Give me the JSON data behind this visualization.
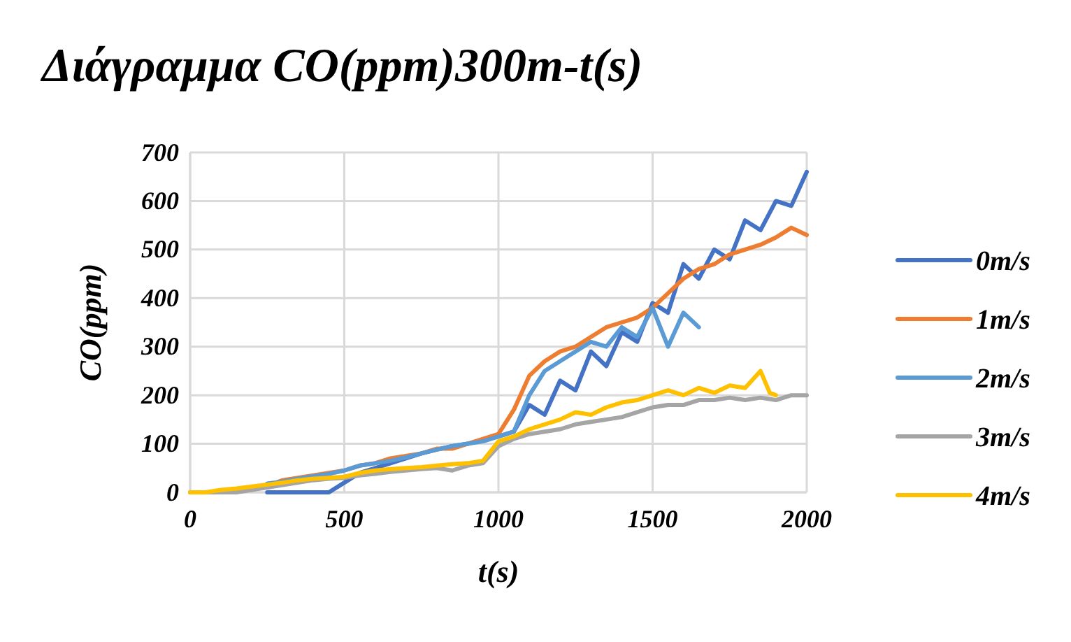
{
  "chart_data": {
    "type": "line",
    "title": "Διάγραμμα CO(ppm)300m-t(s)",
    "xlabel": "t(s)",
    "ylabel": "CO(ppm)",
    "xlim": [
      0,
      2000
    ],
    "xticks": [
      0,
      500,
      1000,
      1500,
      2000
    ],
    "ylim": [
      0,
      700
    ],
    "yticks": [
      0,
      100,
      200,
      300,
      400,
      500,
      600,
      700
    ],
    "grid": true,
    "legend": "right",
    "line_style": "solid",
    "marker": "none",
    "series": [
      {
        "name": "0m/s",
        "color": "#4472c4",
        "x": [
          250,
          300,
          350,
          400,
          450,
          500,
          550,
          600,
          650,
          700,
          750,
          800,
          850,
          900,
          950,
          1000,
          1050,
          1100,
          1150,
          1200,
          1250,
          1300,
          1350,
          1400,
          1450,
          1500,
          1550,
          1600,
          1650,
          1700,
          1750,
          1800,
          1850,
          1900,
          1950,
          2000
        ],
        "values": [
          0,
          0,
          0,
          0,
          0,
          20,
          40,
          50,
          60,
          70,
          80,
          88,
          95,
          100,
          108,
          115,
          125,
          180,
          160,
          230,
          210,
          290,
          260,
          330,
          310,
          390,
          370,
          470,
          440,
          500,
          480,
          560,
          540,
          600,
          590,
          660
        ]
      },
      {
        "name": "1m/s",
        "color": "#ed7d31",
        "x": [
          200,
          250,
          300,
          350,
          400,
          450,
          500,
          550,
          600,
          650,
          700,
          750,
          800,
          850,
          900,
          950,
          1000,
          1050,
          1100,
          1150,
          1200,
          1250,
          1300,
          1350,
          1400,
          1450,
          1500,
          1550,
          1600,
          1650,
          1700,
          1750,
          1800,
          1850,
          1900,
          1950,
          2000
        ],
        "values": [
          5,
          13,
          25,
          30,
          35,
          40,
          45,
          55,
          60,
          70,
          75,
          80,
          90,
          90,
          100,
          110,
          120,
          170,
          240,
          270,
          290,
          300,
          320,
          340,
          350,
          360,
          380,
          410,
          440,
          460,
          470,
          490,
          500,
          510,
          525,
          545,
          530
        ]
      },
      {
        "name": "2m/s",
        "color": "#5b9bd5",
        "x": [
          250,
          300,
          350,
          400,
          450,
          500,
          550,
          600,
          650,
          700,
          750,
          800,
          850,
          900,
          950,
          1000,
          1050,
          1100,
          1150,
          1200,
          1250,
          1300,
          1350,
          1400,
          1450,
          1500,
          1550,
          1600,
          1650
        ],
        "values": [
          18,
          22,
          28,
          33,
          38,
          45,
          55,
          60,
          65,
          72,
          80,
          88,
          95,
          100,
          105,
          115,
          125,
          200,
          250,
          270,
          290,
          310,
          300,
          340,
          320,
          380,
          300,
          370,
          340
        ]
      },
      {
        "name": "3m/s",
        "color": "#a5a5a5",
        "x": [
          0,
          50,
          100,
          150,
          200,
          250,
          300,
          350,
          400,
          450,
          500,
          550,
          600,
          650,
          700,
          750,
          800,
          850,
          900,
          950,
          1000,
          1050,
          1100,
          1150,
          1200,
          1250,
          1300,
          1350,
          1400,
          1450,
          1500,
          1550,
          1600,
          1650,
          1700,
          1750,
          1800,
          1850,
          1900,
          1950,
          2000
        ],
        "values": [
          0,
          0,
          0,
          0,
          5,
          10,
          15,
          20,
          25,
          28,
          30,
          35,
          38,
          42,
          45,
          48,
          50,
          45,
          55,
          60,
          95,
          110,
          120,
          125,
          130,
          140,
          145,
          150,
          155,
          165,
          175,
          180,
          180,
          190,
          190,
          195,
          190,
          195,
          190,
          200,
          200
        ]
      },
      {
        "name": "4m/s",
        "color": "#ffc000",
        "x": [
          0,
          50,
          100,
          150,
          200,
          250,
          300,
          350,
          400,
          450,
          500,
          550,
          600,
          650,
          700,
          750,
          800,
          850,
          900,
          950,
          1000,
          1050,
          1100,
          1150,
          1200,
          1250,
          1300,
          1350,
          1400,
          1450,
          1500,
          1550,
          1600,
          1650,
          1700,
          1750,
          1800,
          1850,
          1880,
          1900
        ],
        "values": [
          0,
          0,
          5,
          8,
          12,
          16,
          20,
          25,
          28,
          30,
          32,
          40,
          45,
          48,
          50,
          52,
          55,
          58,
          60,
          65,
          105,
          115,
          130,
          140,
          150,
          165,
          160,
          175,
          185,
          190,
          200,
          210,
          200,
          215,
          205,
          220,
          215,
          250,
          205,
          200
        ]
      }
    ]
  }
}
